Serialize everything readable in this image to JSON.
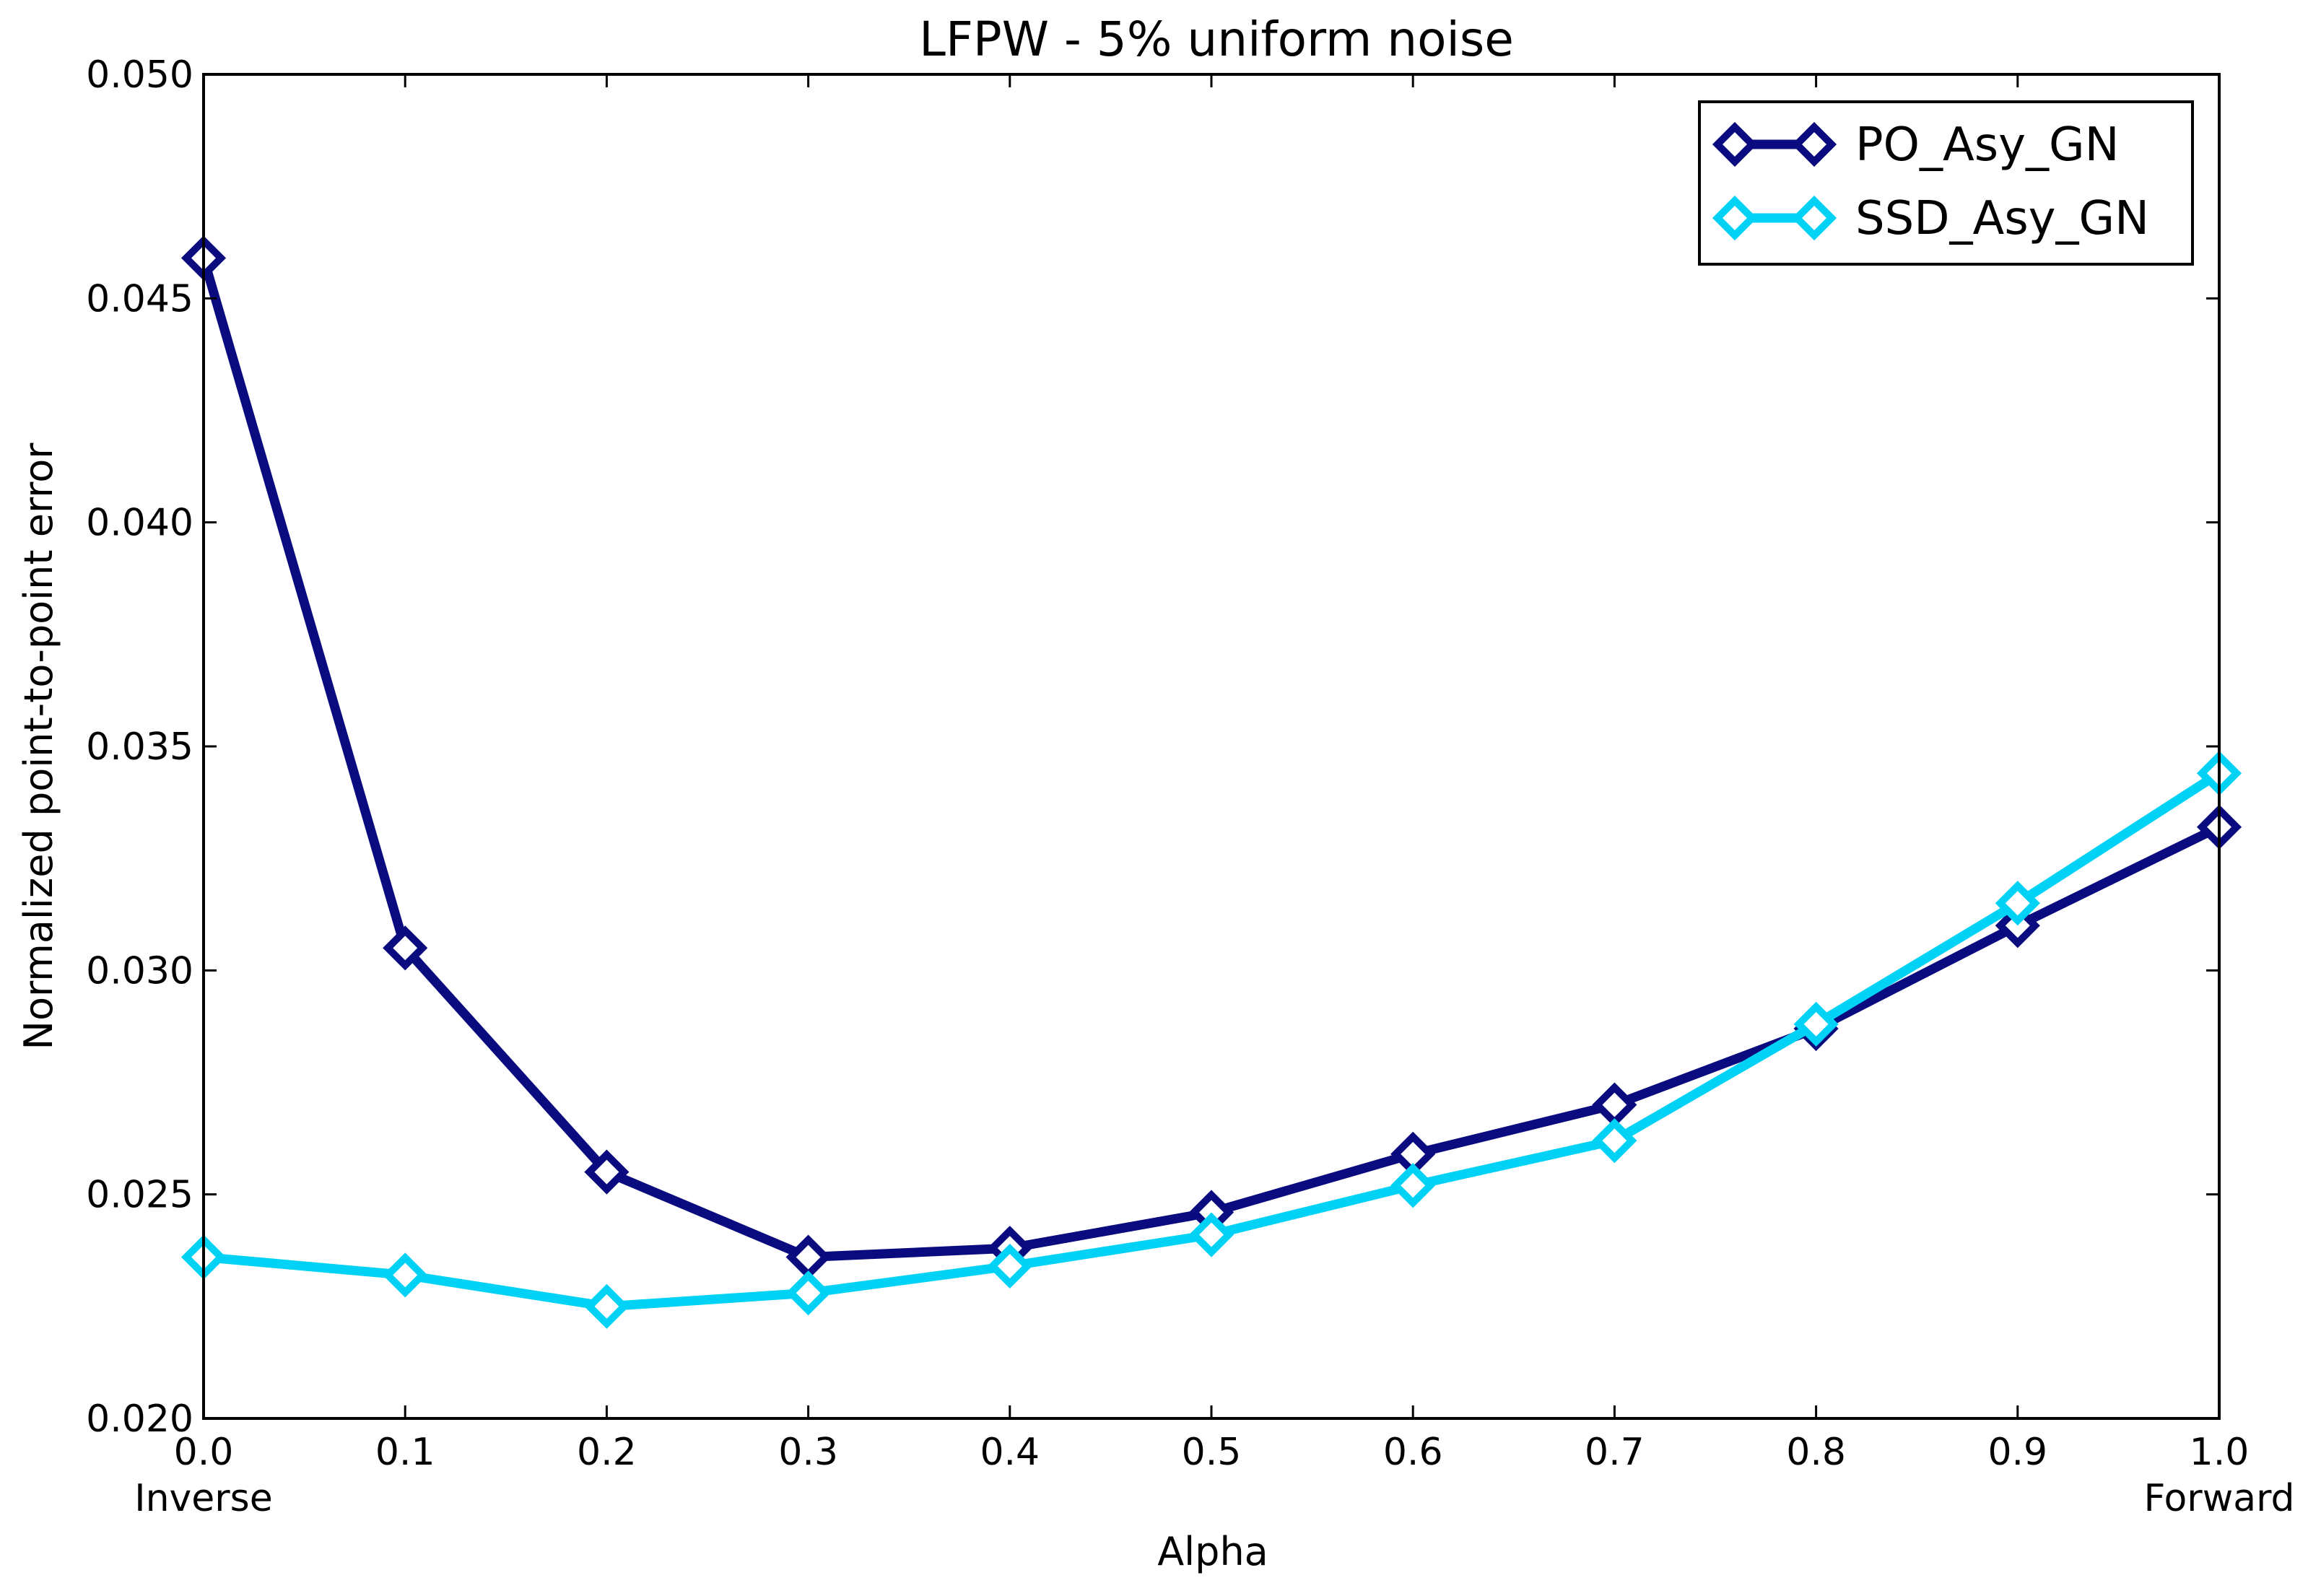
{
  "chart_data": {
    "type": "line",
    "title": "LFPW - 5% uniform noise",
    "xlabel": "Alpha",
    "ylabel": "Normalized point-to-point error",
    "xlim": [
      0.0,
      1.0
    ],
    "ylim": [
      0.02,
      0.05
    ],
    "x": [
      0.0,
      0.1,
      0.2,
      0.3,
      0.4,
      0.5,
      0.6,
      0.7,
      0.8,
      0.9,
      1.0
    ],
    "x_ticks": [
      "0.0",
      "0.1",
      "0.2",
      "0.3",
      "0.4",
      "0.5",
      "0.6",
      "0.7",
      "0.8",
      "0.9",
      "1.0"
    ],
    "x_tick_sublabels": {
      "left": "Inverse",
      "right": "Forward"
    },
    "y_ticks": [
      "0.020",
      "0.025",
      "0.030",
      "0.035",
      "0.040",
      "0.045",
      "0.050"
    ],
    "grid": false,
    "legend_position": "top-right",
    "series": [
      {
        "name": "PO_Asy_GN",
        "color": "#0b0b80",
        "marker": "diamond-open",
        "values": [
          0.0459,
          0.0305,
          0.0255,
          0.0236,
          0.0238,
          0.0246,
          0.0259,
          0.027,
          0.0287,
          0.031,
          0.0332
        ]
      },
      {
        "name": "SSD_Asy_GN",
        "color": "#00d2f5",
        "marker": "diamond-open",
        "values": [
          0.0236,
          0.0232,
          0.0225,
          0.0228,
          0.0234,
          0.0241,
          0.0252,
          0.0262,
          0.0288,
          0.0315,
          0.0344
        ]
      }
    ]
  }
}
